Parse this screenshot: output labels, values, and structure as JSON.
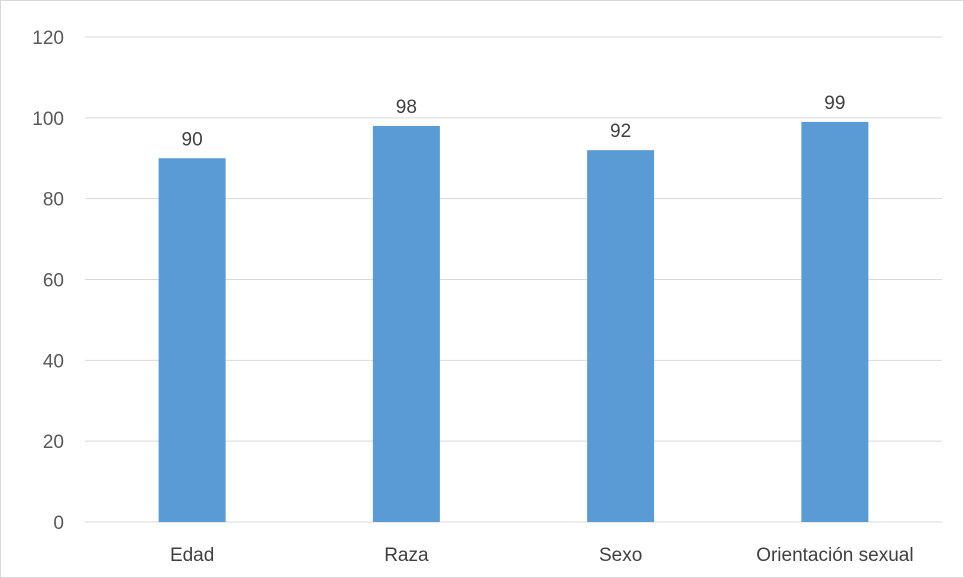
{
  "chart_data": {
    "type": "bar",
    "categories": [
      "Edad",
      "Raza",
      "Sexo",
      "Orientación sexual"
    ],
    "values": [
      90,
      98,
      92,
      99
    ],
    "data_labels": [
      "90",
      "98",
      "92",
      "99"
    ],
    "title": "",
    "xlabel": "",
    "ylabel": "",
    "ylim": [
      0,
      120
    ],
    "yticks": [
      0,
      20,
      40,
      60,
      80,
      100,
      120
    ],
    "ytick_labels": [
      "0",
      "20",
      "40",
      "60",
      "80",
      "100",
      "120"
    ],
    "grid": "horizontal",
    "legend": "none",
    "colors": {
      "bar": "#5b9bd5",
      "grid": "#d9d9d9",
      "axis": "#d9d9d9"
    }
  }
}
